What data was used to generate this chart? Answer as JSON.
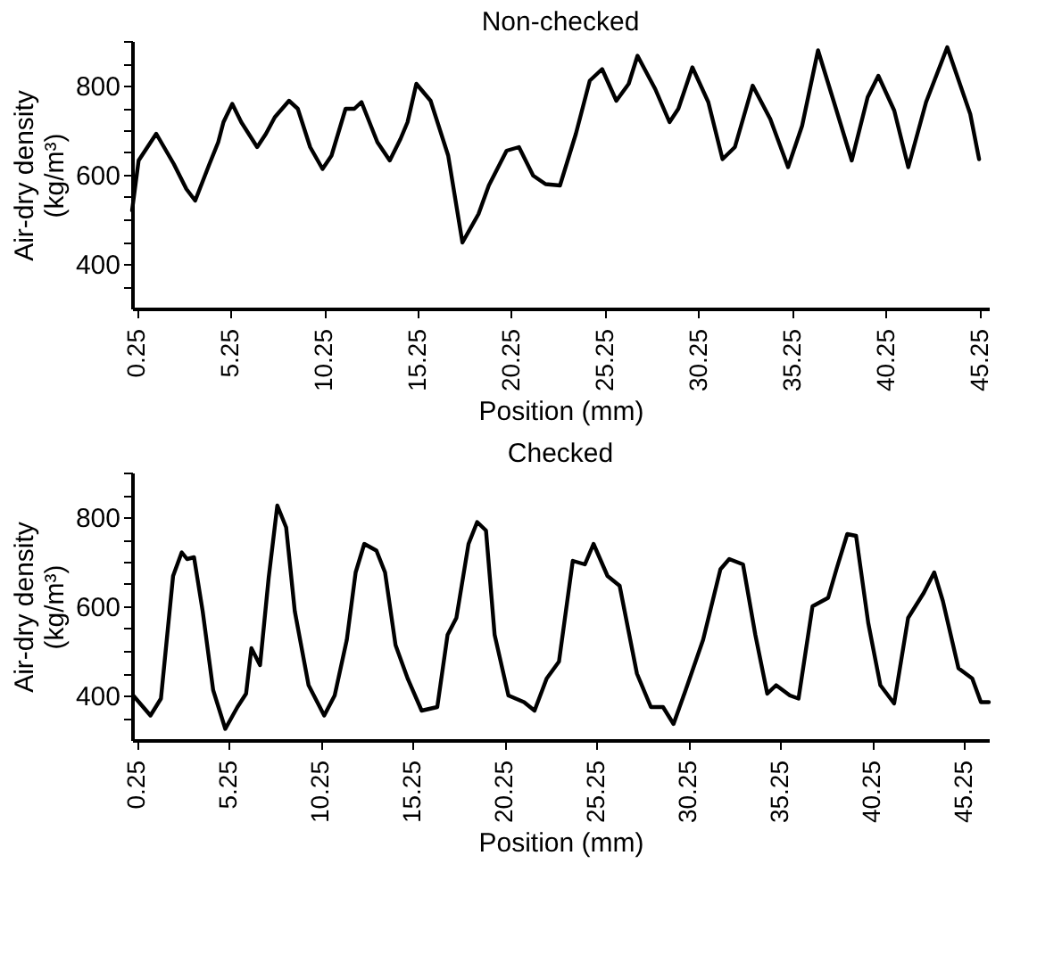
{
  "chart_data": [
    {
      "type": "line",
      "title": "Non-checked",
      "xlabel": "Position (mm)",
      "ylabel": "Air-dry density\n(kg/m³)",
      "xlim": [
        0,
        45.75
      ],
      "xticks": [
        0.25,
        5.25,
        10.25,
        15.25,
        20.25,
        25.25,
        30.25,
        35.25,
        40.25,
        45.25
      ],
      "ylim": [
        300,
        900
      ],
      "yticks": [
        {
          "value": 350,
          "label": null
        },
        400,
        {
          "value": 450,
          "label": null
        },
        {
          "value": 500,
          "label": null
        },
        {
          "value": 550,
          "label": null
        },
        600,
        {
          "value": 650,
          "label": null
        },
        {
          "value": 700,
          "label": null
        },
        {
          "value": 750,
          "label": null
        },
        800,
        {
          "value": 850,
          "label": null
        },
        {
          "value": 900,
          "label": null
        }
      ],
      "grid": false,
      "series": [
        {
          "color": "#000000",
          "x": [
            0.0,
            0.35,
            1.29,
            2.23,
            2.9,
            3.37,
            4.13,
            4.6,
            4.88,
            5.35,
            5.83,
            6.68,
            7.15,
            7.62,
            8.38,
            8.85,
            9.51,
            10.17,
            10.65,
            11.4,
            11.87,
            12.25,
            13.1,
            13.76,
            14.33,
            14.71,
            15.18,
            15.94,
            16.88,
            17.64,
            18.5,
            19.05,
            20.0,
            20.66,
            21.42,
            22.08,
            22.85,
            23.7,
            24.44,
            25.1,
            25.86,
            26.52,
            26.99,
            27.94,
            28.7,
            29.17,
            29.92,
            30.77,
            31.53,
            32.19,
            33.14,
            34.08,
            35.03,
            35.78,
            36.63,
            37.48,
            38.43,
            39.28,
            39.85,
            40.7,
            41.45,
            42.4,
            43.53,
            44.76,
            45.23
          ],
          "values": [
            520,
            632,
            692,
            624,
            568,
            542,
            624,
            673,
            718,
            759,
            718,
            662,
            692,
            729,
            766,
            748,
            662,
            613,
            643,
            748,
            748,
            763,
            673,
            632,
            680,
            718,
            804,
            766,
            643,
            448,
            512,
            576,
            654,
            662,
            598,
            579,
            576,
            692,
            811,
            837,
            766,
            804,
            867,
            792,
            718,
            748,
            841,
            763,
            635,
            662,
            800,
            725,
            617,
            710,
            879,
            763,
            632,
            774,
            822,
            744,
            617,
            763,
            886,
            736,
            635
          ]
        }
      ]
    },
    {
      "type": "line",
      "title": "Checked",
      "xlabel": "Position (mm)",
      "ylabel": "Air-dry density\n(kg/m³)",
      "xlim": [
        0,
        46.6
      ],
      "xticks": [
        0.25,
        5.25,
        10.25,
        15.25,
        20.25,
        25.25,
        30.25,
        35.25,
        40.25,
        45.25
      ],
      "ylim": [
        300,
        900
      ],
      "yticks": [
        {
          "value": 350,
          "label": null
        },
        400,
        {
          "value": 450,
          "label": null
        },
        {
          "value": 500,
          "label": null
        },
        {
          "value": 550,
          "label": null
        },
        600,
        {
          "value": 650,
          "label": null
        },
        {
          "value": 700,
          "label": null
        },
        {
          "value": 750,
          "label": null
        },
        800,
        {
          "value": 850,
          "label": null
        },
        {
          "value": 900,
          "label": null
        }
      ],
      "grid": false,
      "series": [
        {
          "color": "#000000",
          "x": [
            0.06,
            1.0,
            1.57,
            2.23,
            2.7,
            2.99,
            3.37,
            3.84,
            4.41,
            5.07,
            5.73,
            6.2,
            6.49,
            6.96,
            7.43,
            7.9,
            8.38,
            8.85,
            9.6,
            10.45,
            11.02,
            11.68,
            12.16,
            12.63,
            13.29,
            13.76,
            14.33,
            14.99,
            15.75,
            16.6,
            17.16,
            17.64,
            18.3,
            18.77,
            19.25,
            19.72,
            20.47,
            21.32,
            21.89,
            22.55,
            23.22,
            23.97,
            24.63,
            25.1,
            25.86,
            26.52,
            27.46,
            28.22,
            28.88,
            29.45,
            30.11,
            31.06,
            32.0,
            32.48,
            33.23,
            33.9,
            34.55,
            35.03,
            35.78,
            36.25,
            37.01,
            37.86,
            38.34,
            38.9,
            39.38,
            40.04,
            40.7,
            41.45,
            42.21,
            43.06,
            43.63,
            44.1,
            44.95,
            45.7,
            46.17,
            46.6
          ],
          "values": [
            400,
            355,
            393,
            668,
            721,
            706,
            710,
            589,
            412,
            325,
            374,
            404,
            506,
            468,
            664,
            826,
            777,
            589,
            423,
            355,
            400,
            525,
            676,
            740,
            725,
            676,
            513,
            438,
            366,
            374,
            536,
            574,
            740,
            789,
            770,
            536,
            400,
            385,
            366,
            438,
            476,
            702,
            694,
            740,
            668,
            646,
            449,
            374,
            374,
            336,
            412,
            525,
            683,
            706,
            694,
            536,
            404,
            423,
            400,
            393,
            600,
            619,
            687,
            762,
            758,
            563,
            423,
            382,
            574,
            630,
            676,
            612,
            461,
            438,
            385,
            385
          ]
        }
      ]
    }
  ]
}
